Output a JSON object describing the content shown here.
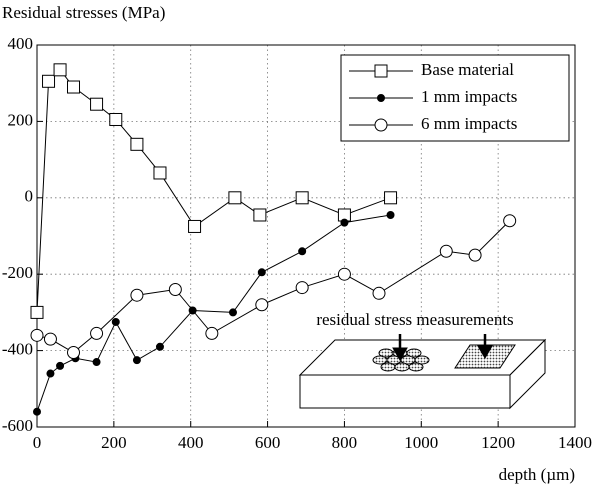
{
  "chart_data": {
    "type": "line",
    "title": "Residual stresses (MPa)",
    "x_label": "depth (µm)",
    "annotation": "residual stress measurements",
    "xlim": [
      0,
      1400
    ],
    "xticks": [
      0,
      200,
      400,
      600,
      800,
      1000,
      1200,
      1400
    ],
    "ylim": [
      -600,
      400
    ],
    "yticks": [
      -600,
      -400,
      -200,
      0,
      200,
      400
    ],
    "grid": true,
    "legend": "upper right",
    "series": [
      {
        "name": "Base material",
        "color": "#000000",
        "marker": "square",
        "x": [
          0,
          30,
          60,
          95,
          155,
          205,
          260,
          320,
          410,
          515,
          580,
          690,
          800,
          920
        ],
        "values": [
          -300,
          305,
          335,
          290,
          245,
          205,
          140,
          65,
          -75,
          0,
          -45,
          0,
          -45,
          0
        ]
      },
      {
        "name": "1 mm impacts",
        "color": "#000000",
        "marker": "filled-circle",
        "x": [
          0,
          35,
          60,
          100,
          155,
          205,
          260,
          320,
          405,
          510,
          585,
          690,
          800,
          920
        ],
        "values": [
          -560,
          -460,
          -440,
          -420,
          -430,
          -325,
          -425,
          -390,
          -295,
          -300,
          -195,
          -140,
          -65,
          -45
        ]
      },
      {
        "name": "6 mm impacts",
        "color": "#000000",
        "marker": "open-circle",
        "x": [
          0,
          35,
          95,
          155,
          260,
          360,
          455,
          585,
          690,
          800,
          890,
          1065,
          1140,
          1230
        ],
        "values": [
          -360,
          -370,
          -405,
          -355,
          -255,
          -240,
          -355,
          -280,
          -235,
          -200,
          -250,
          -140,
          -150,
          -60
        ]
      }
    ]
  }
}
